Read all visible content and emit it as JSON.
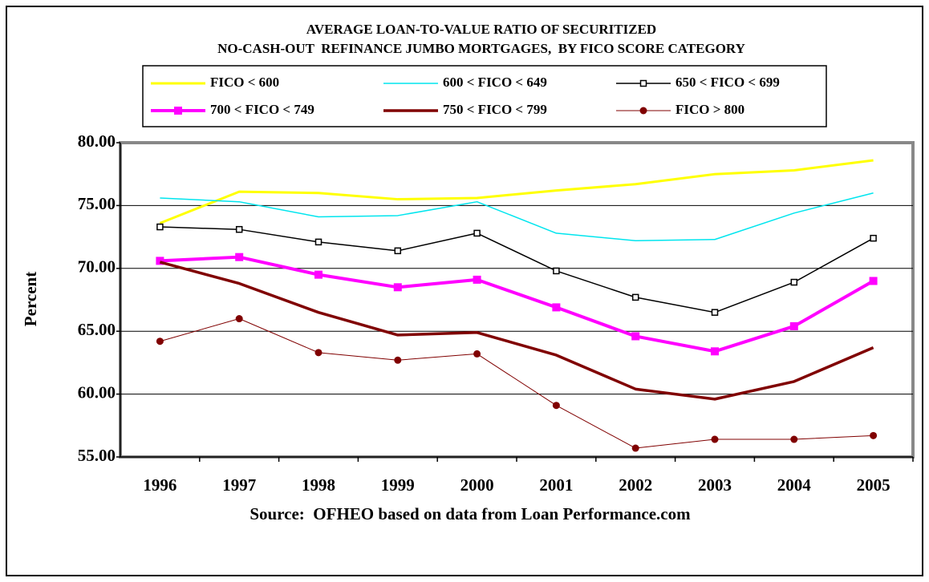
{
  "chart_data": {
    "type": "line",
    "title": [
      "AVERAGE LOAN-TO-VALUE RATIO OF SECURITIZED",
      "NO-CASH-OUT  REFINANCE JUMBO MORTGAGES,  BY FICO SCORE CATEGORY"
    ],
    "ylabel": "Percent",
    "source": "Source:  OFHEO based on data from Loan Performance.com",
    "categories": [
      "1996",
      "1997",
      "1998",
      "1999",
      "2000",
      "2001",
      "2002",
      "2003",
      "2004",
      "2005"
    ],
    "ylim": [
      55,
      80
    ],
    "yticks": [
      {
        "value": 55,
        "label": "55.00"
      },
      {
        "value": 60,
        "label": "60.00"
      },
      {
        "value": 65,
        "label": "65.00"
      },
      {
        "value": 70,
        "label": "70.00"
      },
      {
        "value": 75,
        "label": "75.00"
      },
      {
        "value": 80,
        "label": "80.00"
      }
    ],
    "grid": true,
    "series": [
      {
        "name": "FICO < 600",
        "color": "#ffff00",
        "width": 3,
        "marker": null,
        "values": [
          73.6,
          76.1,
          76.0,
          75.5,
          75.6,
          76.2,
          76.7,
          77.5,
          77.8,
          78.6
        ]
      },
      {
        "name": "600 < FICO < 649",
        "color": "#00e5ee",
        "width": 1.5,
        "marker": null,
        "values": [
          75.6,
          75.3,
          74.1,
          74.2,
          75.3,
          72.8,
          72.2,
          72.3,
          74.4,
          76.0
        ]
      },
      {
        "name": "650 < FICO < 699",
        "color": "#000000",
        "width": 1.5,
        "marker": "open-square",
        "values": [
          73.3,
          73.1,
          72.1,
          71.4,
          72.8,
          69.8,
          67.7,
          66.5,
          68.9,
          72.4
        ]
      },
      {
        "name": "700 < FICO < 749",
        "color": "#ff00ff",
        "width": 4,
        "marker": "square",
        "values": [
          70.6,
          70.9,
          69.5,
          68.5,
          69.1,
          66.9,
          64.6,
          63.4,
          65.4,
          69.0
        ]
      },
      {
        "name": "750 < FICO < 799",
        "color": "#800000",
        "width": 3.5,
        "marker": null,
        "values": [
          70.5,
          68.8,
          66.5,
          64.7,
          64.9,
          63.1,
          60.4,
          59.6,
          61.0,
          63.7
        ]
      },
      {
        "name": "FICO > 800",
        "color": "#800000",
        "width": 1,
        "marker": "circle",
        "values": [
          64.2,
          66.0,
          63.3,
          62.7,
          63.2,
          59.1,
          55.7,
          56.4,
          56.4,
          56.7
        ]
      }
    ]
  }
}
